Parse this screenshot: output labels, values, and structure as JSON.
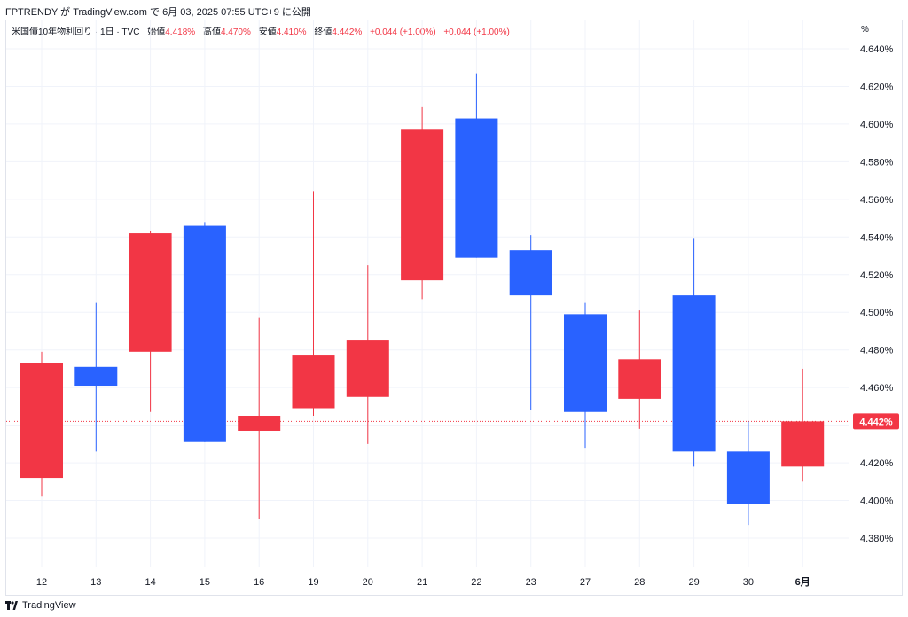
{
  "caption": "FPTRENDY が TradingView.com で 6月 03, 2025 07:55 UTC+9 に公開",
  "legend": {
    "symbol": "米国債10年物利回り · 1日 · TVC",
    "open_label": "始値",
    "open": "4.418%",
    "high_label": "高値",
    "high": "4.470%",
    "low_label": "安値",
    "low": "4.410%",
    "close_label": "終値",
    "close": "4.442%",
    "change1": "+0.044 (+1.00%)",
    "change2": "+0.044 (+1.00%)"
  },
  "axis_unit": "%",
  "last_price_label": "4.442%",
  "footer_brand": "TradingView",
  "colors": {
    "up": "#f23645",
    "down": "#2962ff",
    "grid": "#f0f3fa",
    "text": "#131722"
  },
  "chart_data": {
    "type": "candlestick",
    "y_ticks": [
      4.38,
      4.4,
      4.42,
      4.44,
      4.46,
      4.48,
      4.5,
      4.52,
      4.54,
      4.56,
      4.58,
      4.6,
      4.62,
      4.64
    ],
    "y_tick_labels": [
      "4.380%",
      "4.400%",
      "4.420%",
      "4.440%",
      "4.460%",
      "4.480%",
      "4.500%",
      "4.520%",
      "4.540%",
      "4.560%",
      "4.580%",
      "4.600%",
      "4.620%",
      "4.640%"
    ],
    "last_price": 4.442,
    "candles": [
      {
        "label": "12",
        "open": 4.412,
        "high": 4.479,
        "low": 4.402,
        "close": 4.473,
        "bold": false
      },
      {
        "label": "13",
        "open": 4.471,
        "high": 4.505,
        "low": 4.426,
        "close": 4.461,
        "bold": false
      },
      {
        "label": "14",
        "open": 4.479,
        "high": 4.543,
        "low": 4.447,
        "close": 4.542,
        "bold": false
      },
      {
        "label": "15",
        "open": 4.546,
        "high": 4.548,
        "low": 4.431,
        "close": 4.431,
        "bold": false
      },
      {
        "label": "16",
        "open": 4.437,
        "high": 4.497,
        "low": 4.39,
        "close": 4.445,
        "bold": false
      },
      {
        "label": "19",
        "open": 4.449,
        "high": 4.564,
        "low": 4.445,
        "close": 4.477,
        "bold": false
      },
      {
        "label": "20",
        "open": 4.455,
        "high": 4.525,
        "low": 4.43,
        "close": 4.485,
        "bold": false
      },
      {
        "label": "21",
        "open": 4.517,
        "high": 4.609,
        "low": 4.507,
        "close": 4.597,
        "bold": false
      },
      {
        "label": "22",
        "open": 4.603,
        "high": 4.627,
        "low": 4.529,
        "close": 4.529,
        "bold": false
      },
      {
        "label": "23",
        "open": 4.533,
        "high": 4.541,
        "low": 4.448,
        "close": 4.509,
        "bold": false
      },
      {
        "label": "27",
        "open": 4.499,
        "high": 4.505,
        "low": 4.428,
        "close": 4.447,
        "bold": false
      },
      {
        "label": "28",
        "open": 4.454,
        "high": 4.501,
        "low": 4.438,
        "close": 4.475,
        "bold": false
      },
      {
        "label": "29",
        "open": 4.509,
        "high": 4.539,
        "low": 4.418,
        "close": 4.426,
        "bold": false
      },
      {
        "label": "30",
        "open": 4.426,
        "high": 4.442,
        "low": 4.387,
        "close": 4.398,
        "bold": false
      },
      {
        "label": "6月",
        "open": 4.418,
        "high": 4.47,
        "low": 4.41,
        "close": 4.442,
        "bold": true
      }
    ]
  }
}
